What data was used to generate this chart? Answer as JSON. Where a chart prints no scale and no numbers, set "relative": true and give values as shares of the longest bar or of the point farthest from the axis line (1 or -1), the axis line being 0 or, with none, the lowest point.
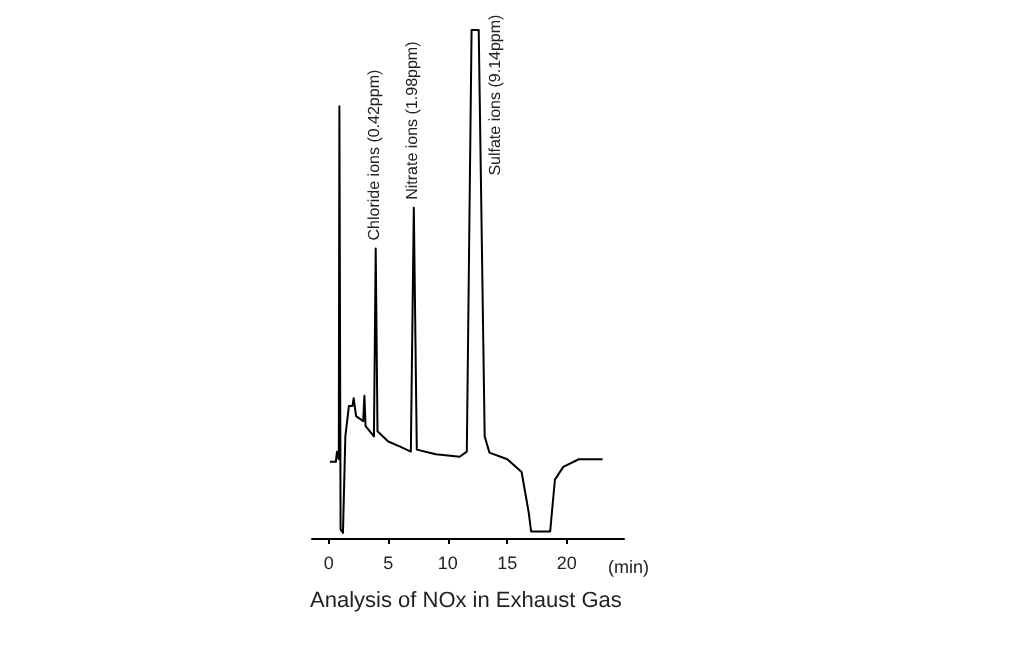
{
  "chart_data": {
    "type": "line",
    "title": "Analysis of NOx in Exhaust Gas",
    "xlabel": "(min)",
    "relative": true,
    "color": "#000000",
    "grid": false,
    "marker": "none",
    "line_style": "solid",
    "xlim": [
      -1.4,
      24.8
    ],
    "xticks": [
      0,
      5,
      10,
      15,
      20
    ],
    "x": [
      0.1,
      0.6,
      0.7,
      0.85,
      0.9,
      1.0,
      1.2,
      1.4,
      1.7,
      2.0,
      2.1,
      2.3,
      2.9,
      3.0,
      3.1,
      3.8,
      3.95,
      4.1,
      5,
      6,
      6.9,
      7.15,
      7.4,
      9,
      11,
      11.6,
      12.0,
      12.6,
      13.1,
      13.5,
      15,
      16.2,
      16.8,
      17.0,
      18.6,
      19.0,
      19.7,
      21,
      23
    ],
    "values": [
      0.15,
      0.15,
      0.17,
      0.155,
      0.85,
      0.017,
      0.01,
      0.2,
      0.26,
      0.26,
      0.275,
      0.24,
      0.23,
      0.28,
      0.22,
      0.2,
      0.57,
      0.21,
      0.19,
      0.18,
      0.17,
      0.65,
      0.174,
      0.165,
      0.16,
      0.17,
      1.0,
      1.0,
      0.2,
      0.168,
      0.155,
      0.13,
      0.05,
      0.013,
      0.013,
      0.115,
      0.14,
      0.155,
      0.155
    ],
    "annotations": [
      {
        "text": "Chloride ions (0.42ppm)",
        "x": 3.95,
        "y": 0.57
      },
      {
        "text": "Nitrate ions (1.98ppm)",
        "x": 7.15,
        "y": 0.65
      },
      {
        "text": "Sulfate ions (9.14ppm)",
        "x": 12.3,
        "y": 1.0
      }
    ]
  }
}
